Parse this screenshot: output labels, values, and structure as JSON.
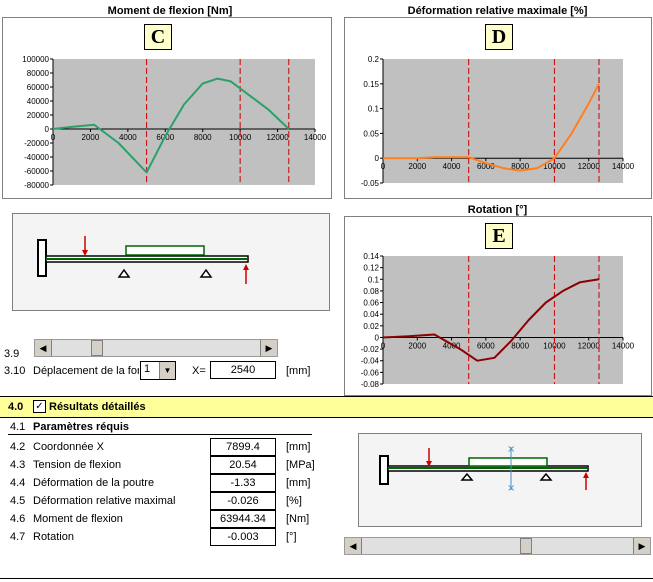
{
  "charts": {
    "C": {
      "title": "Moment de flexion  [Nm]",
      "letter": "C",
      "yticks": [
        "100000",
        "80000",
        "60000",
        "40000",
        "20000",
        "0",
        "-20000",
        "-40000",
        "-60000",
        "-80000"
      ],
      "xticks": [
        "0",
        "2000",
        "4000",
        "6000",
        "8000",
        "10000",
        "12000",
        "14000"
      ]
    },
    "D": {
      "title": "Déformation relative maximale  [%]",
      "letter": "D",
      "yticks": [
        "0.2",
        "0.15",
        "0.1",
        "0.05",
        "0",
        "-0.05"
      ],
      "xticks": [
        "0",
        "2000",
        "4000",
        "6000",
        "8000",
        "10000",
        "12000",
        "14000"
      ]
    },
    "E": {
      "title": "Rotation  [°]",
      "letter": "E",
      "yticks": [
        "0.14",
        "0.12",
        "0.1",
        "0.08",
        "0.06",
        "0.04",
        "0.02",
        "0",
        "-0.02",
        "-0.04",
        "-0.06",
        "-0.08"
      ],
      "xticks": [
        "0",
        "2000",
        "4000",
        "6000",
        "8000",
        "10000",
        "12000",
        "14000"
      ]
    }
  },
  "chart_data": [
    {
      "type": "line",
      "title": "Moment de flexion  [Nm]",
      "xlim": [
        0,
        14000
      ],
      "ylim": [
        -80000,
        100000
      ],
      "series": [
        {
          "x": [
            0,
            1000,
            2200,
            3500,
            5000,
            6000,
            7000,
            8000,
            8800,
            9500,
            10500,
            11500,
            12600
          ],
          "y": [
            0,
            3000,
            6000,
            -20000,
            -62000,
            -10000,
            35000,
            65000,
            72000,
            68000,
            48000,
            28000,
            0
          ]
        }
      ],
      "vlines": [
        5000,
        10000,
        12600
      ]
    },
    {
      "type": "line",
      "title": "Déformation relative maximale  [%]",
      "xlim": [
        0,
        14000
      ],
      "ylim": [
        -0.05,
        0.2
      ],
      "series": [
        {
          "x": [
            0,
            2000,
            3000,
            5000,
            6000,
            7000,
            8000,
            9000,
            10000,
            11000,
            12000,
            12600
          ],
          "y": [
            0,
            0,
            0.002,
            0.002,
            -0.01,
            -0.02,
            -0.025,
            -0.02,
            0,
            0.05,
            0.11,
            0.15
          ]
        }
      ],
      "vlines": [
        5000,
        10000,
        12600
      ]
    },
    {
      "type": "line",
      "title": "Rotation  [°]",
      "xlim": [
        0,
        14000
      ],
      "ylim": [
        -0.08,
        0.14
      ],
      "series": [
        {
          "x": [
            0,
            1500,
            3000,
            4500,
            5500,
            6500,
            7500,
            8500,
            9500,
            10500,
            11500,
            12600
          ],
          "y": [
            0,
            0.002,
            0.005,
            -0.02,
            -0.04,
            -0.035,
            -0.005,
            0.03,
            0.06,
            0.08,
            0.095,
            0.1
          ]
        }
      ],
      "vlines": [
        5000,
        10000,
        12600
      ]
    }
  ],
  "slider1": {
    "label": "3.9"
  },
  "deplacement": {
    "num": "3.10",
    "label": "Déplacement de la for",
    "select": "1",
    "xlabel": "X=",
    "value": "2540",
    "unit": "[mm]"
  },
  "section": {
    "num": "4.0",
    "title": "Résultats détaillés"
  },
  "params": {
    "num": "4.1",
    "title": "Paramètres réquis"
  },
  "results": [
    {
      "num": "4.2",
      "label": "Coordonnée X",
      "value": "7899.4",
      "unit": "[mm]"
    },
    {
      "num": "4.3",
      "label": "Tension de flexion",
      "value": "20.54",
      "unit": "[MPa]"
    },
    {
      "num": "4.4",
      "label": "Déformation de la poutre",
      "value": "-1.33",
      "unit": "[mm]"
    },
    {
      "num": "4.5",
      "label": "Déformation relative maximale",
      "value": "-0.026",
      "unit": "[%]"
    },
    {
      "num": "4.6",
      "label": "Moment de flexion",
      "value": "63944.34",
      "unit": "[Nm]"
    },
    {
      "num": "4.7",
      "label": "Rotation",
      "value": "-0.003",
      "unit": "[°]"
    }
  ],
  "colors": {
    "moment": "#2ca06a",
    "deformation": "#ff7f1e",
    "rotation": "#8b0000",
    "vline": "#cc0000",
    "beam": "#006400",
    "load": "#cc0000",
    "highlight": "#ffff99"
  }
}
